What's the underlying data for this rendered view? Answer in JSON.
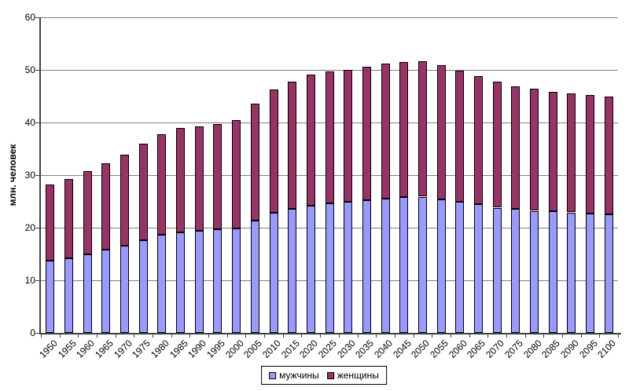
{
  "chart_data": {
    "type": "bar",
    "stacked": true,
    "title": "",
    "xlabel": "",
    "ylabel": "млн. человек",
    "ylim": [
      0,
      60
    ],
    "yticks": [
      0,
      10,
      20,
      30,
      40,
      50,
      60
    ],
    "grid": true,
    "legend_position": "bottom-center",
    "categories": [
      "1950",
      "1955",
      "1960",
      "1965",
      "1970",
      "1975",
      "1980",
      "1985",
      "1990",
      "1995",
      "2000",
      "2005",
      "2010",
      "2015",
      "2020",
      "2025",
      "2030",
      "2035",
      "2040",
      "2045",
      "2050",
      "2055",
      "2060",
      "2065",
      "2070",
      "2075",
      "2080",
      "2085",
      "2090",
      "2095",
      "2100"
    ],
    "series": [
      {
        "name": "мужчины",
        "color": "#9999FF",
        "values": [
          13.7,
          14.2,
          14.9,
          15.8,
          16.6,
          17.6,
          18.7,
          19.1,
          19.4,
          19.7,
          19.9,
          21.4,
          22.9,
          23.6,
          24.2,
          24.7,
          24.9,
          25.2,
          25.6,
          25.8,
          25.9,
          25.4,
          24.9,
          24.5,
          23.8,
          23.6,
          23.2,
          23.1,
          22.9,
          22.7,
          22.6
        ]
      },
      {
        "name": "женщины",
        "color": "#993366",
        "values": [
          14.5,
          15.1,
          15.9,
          16.5,
          17.3,
          18.4,
          19.1,
          19.8,
          19.8,
          20.0,
          20.5,
          22.2,
          23.4,
          24.1,
          24.9,
          25.0,
          25.1,
          25.4,
          25.6,
          25.7,
          25.7,
          25.5,
          25.0,
          24.3,
          24.0,
          23.3,
          23.2,
          22.8,
          22.6,
          22.5,
          22.4
        ]
      }
    ]
  }
}
